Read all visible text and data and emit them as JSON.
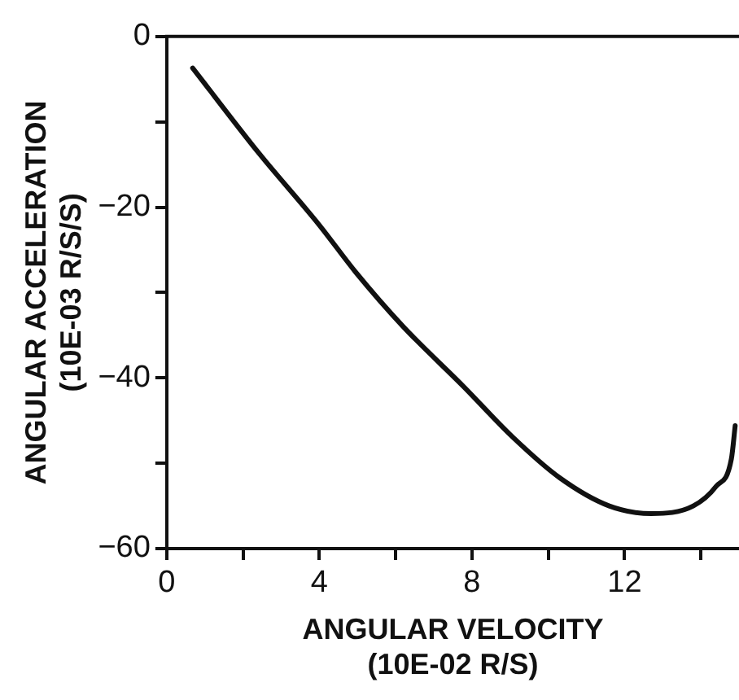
{
  "chart_data": {
    "type": "line",
    "xlabel": "ANGULAR VELOCITY\n(10E-02 R/S)",
    "ylabel": "ANGULAR ACCELERATION\n(10E-03 R/S/S)",
    "x": [
      0.68,
      2.42,
      4,
      4.95,
      6.2,
      7.8,
      9.06,
      10.3,
      11.6,
      12.7,
      13.8,
      14.4,
      14.8,
      14.9
    ],
    "series": [
      {
        "color": "#111111",
        "values": [
          -3.7,
          -13.7,
          -22.1,
          -27.6,
          -34,
          -41.1,
          -46.9,
          -51.7,
          -55,
          -55.9,
          -55,
          -52.7,
          -49.5,
          -45.6
        ]
      }
    ],
    "xlim": [
      0,
      15
    ],
    "ylim": [
      -60,
      0
    ],
    "xticks": [
      0,
      {
        "value": 2,
        "label": null
      },
      4,
      {
        "value": 6,
        "label": null
      },
      8,
      {
        "value": 10,
        "label": null
      },
      12,
      {
        "value": 14,
        "label": null
      }
    ],
    "yticks": [
      -60,
      {
        "value": -50,
        "label": null
      },
      -40,
      {
        "value": -30,
        "label": null
      },
      -20,
      {
        "value": -10,
        "label": null
      },
      0
    ],
    "grid": false,
    "legend": false,
    "marker": "none",
    "line_style": "solid"
  }
}
